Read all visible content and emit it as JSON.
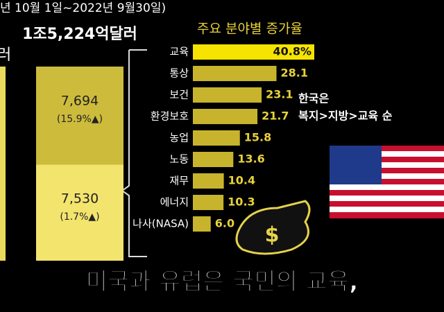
{
  "header": {
    "period": "년 10월 1일~2022년 9월30일)",
    "cut_label": "러"
  },
  "chart_data": [
    {
      "type": "stacked-column",
      "total_label": "1조5,224억달러",
      "series": [
        {
          "color": "#f3e46e",
          "values": [
            7530
          ],
          "value_labels": [
            "7,530"
          ],
          "change_labels": [
            "(1.7%▲)"
          ]
        },
        {
          "color": "#cdbb3c",
          "values": [
            7694
          ],
          "value_labels": [
            "7,694"
          ],
          "change_labels": [
            "(15.9%▲)"
          ]
        }
      ]
    },
    {
      "type": "hbar",
      "title": "주요 분야별 증가율",
      "categories": [
        "교육",
        "통상",
        "보건",
        "환경보호",
        "농업",
        "노동",
        "재무",
        "에너지",
        "나사(NASA)"
      ],
      "values": [
        40.8,
        28.1,
        23.1,
        21.7,
        15.8,
        13.6,
        10.4,
        10.3,
        6.0
      ],
      "value_labels": [
        "40.8%",
        "28.1",
        "23.1",
        "21.7",
        "15.8",
        "13.6",
        "10.4",
        "10.3",
        "6.0"
      ],
      "highlight_color": "#f6e400",
      "color": "#c8b42c"
    }
  ],
  "annotation": {
    "lines": [
      "한국은",
      "복지>지방>교육 순"
    ]
  },
  "caption": "미국과 유럽은 국민의 교육,"
}
